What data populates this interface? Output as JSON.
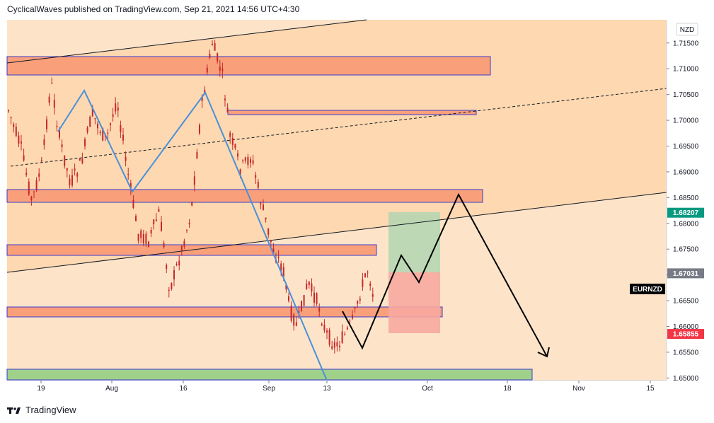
{
  "header": {
    "text": "CyclicalWaves published on TradingView.com, Sep 21, 2021 14:56 UTC+4:30"
  },
  "footer": {
    "brand": "TradingView"
  },
  "colors": {
    "background": "#fde4c9",
    "upper_zone": "#fdd8b0",
    "zone_fill": "#f9a07a",
    "zone_border": "#3a3acf",
    "support_fill": "#9fd18b",
    "candle": "#c62828",
    "wave": "#4a90d9",
    "profit": "#b6d6b1",
    "loss": "#f7a9a0",
    "price_green": "#089981",
    "price_grey": "#787b86",
    "price_red": "#f23645"
  },
  "chart_data": {
    "type": "candlestick",
    "symbol": "EURNZD",
    "currency": "NZD",
    "x_ticks": [
      "19",
      "Aug",
      "16",
      "Sep",
      "13",
      "Oct",
      "18",
      "Nov",
      "15"
    ],
    "y_ticks": [
      "1.71500",
      "1.71000",
      "1.70500",
      "1.70000",
      "1.69500",
      "1.69000",
      "1.68500",
      "1.68000",
      "1.67500",
      "1.67000",
      "1.66500",
      "1.66000",
      "1.65500",
      "1.65000"
    ],
    "ylim": [
      1.6495,
      1.7195
    ],
    "price_labels": [
      {
        "value": 1.68207,
        "text": "1.68207",
        "color": "green"
      },
      {
        "value": 1.67031,
        "text": "1.67031",
        "color": "grey"
      },
      {
        "value": 1.65855,
        "text": "1.65855",
        "color": "red"
      }
    ],
    "symbol_label": "EURNZD",
    "current_price": 1.67031,
    "target_price": 1.68207,
    "stop_price": 1.65855
  }
}
